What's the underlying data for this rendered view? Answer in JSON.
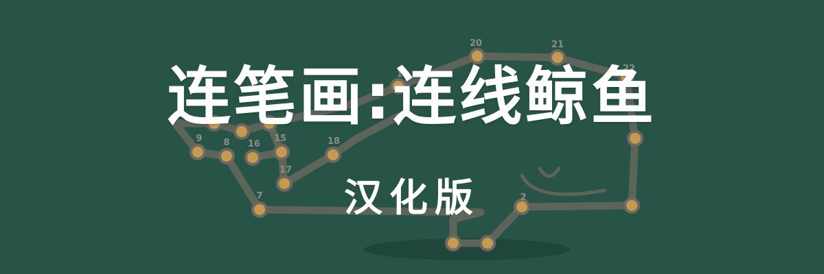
{
  "banner": {
    "title": "连笔画:连线鲸鱼",
    "subtitle": "汉化版"
  },
  "puzzle": {
    "nodes": [
      {
        "label": "20"
      },
      {
        "label": "21"
      },
      {
        "label": "22"
      },
      {
        "label": "9"
      },
      {
        "label": "8"
      },
      {
        "label": "16"
      },
      {
        "label": "15"
      },
      {
        "label": "18"
      },
      {
        "label": "17"
      },
      {
        "label": "7"
      },
      {
        "label": "2"
      },
      {
        "label": "1"
      }
    ]
  },
  "colors": {
    "background": "#275447",
    "line": "#5d6459",
    "node_fill": "#c79a52",
    "node_ring": "#6e6a60",
    "label": "#8b8f88",
    "title": "#ffffff"
  }
}
